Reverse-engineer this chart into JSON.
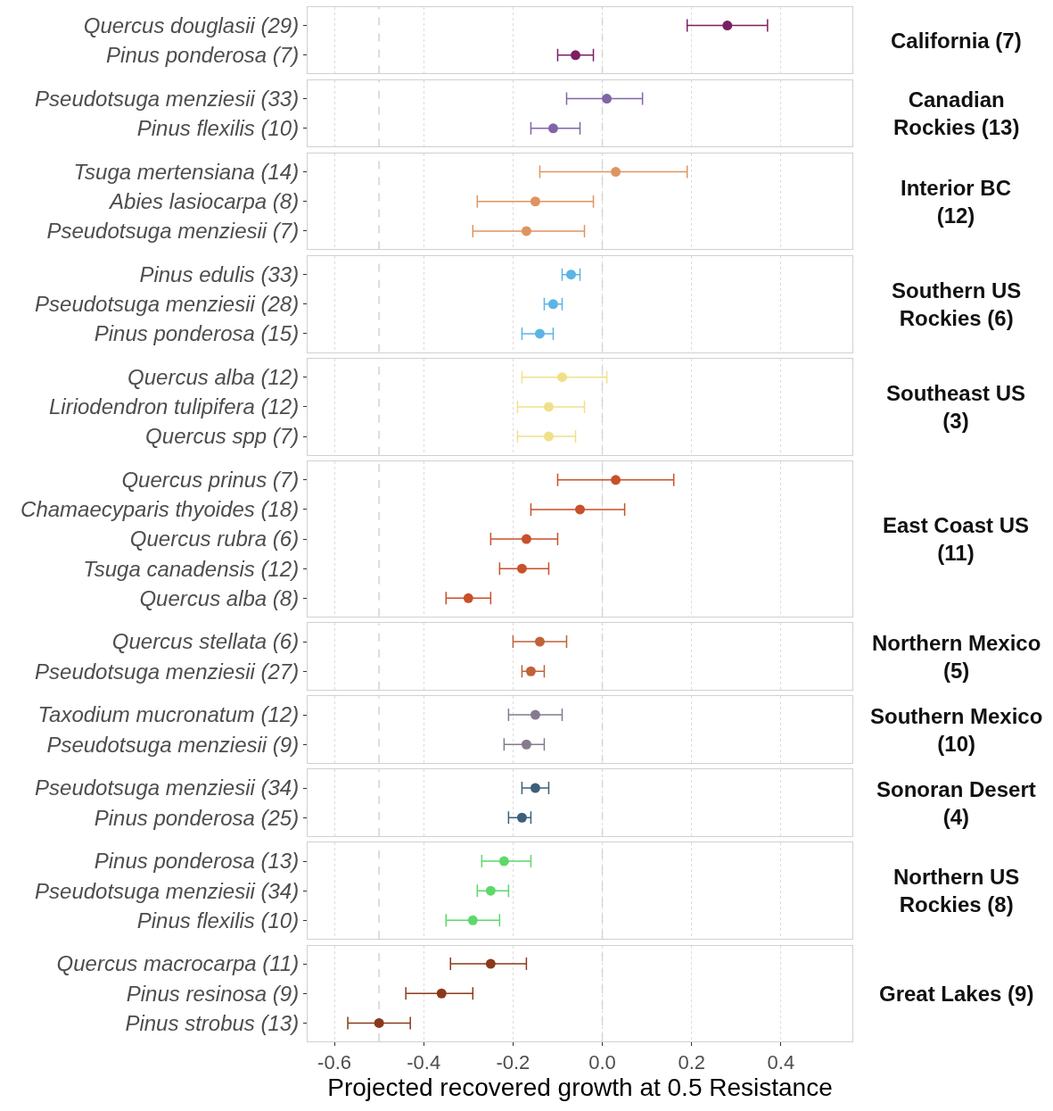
{
  "chart_data": [
    {
      "type": "scatter",
      "orientation": "horizontal",
      "y2label": "California (7)",
      "categories": [
        "Quercus douglasii (29)",
        "Pinus ponderosa (7)"
      ],
      "values": [
        0.28,
        -0.06
      ],
      "errors": [
        [
          0.19,
          0.37
        ],
        [
          -0.1,
          -0.02
        ]
      ],
      "color": "#7b1f63",
      "xlim": [
        -0.66,
        0.56
      ],
      "xticks": [
        -0.6,
        -0.4,
        -0.2,
        0.0,
        0.2,
        0.4
      ],
      "grid": "x",
      "marker": "circle",
      "tick_labels": "y",
      "ref_lines": [
        {
          "axis": "x",
          "value": -0.5,
          "line_style": "dashed",
          "color": "#d3d3d3"
        },
        {
          "axis": "x",
          "value": 0,
          "line_style": "dashed",
          "color": "#d3d3d3"
        }
      ]
    },
    {
      "type": "scatter",
      "orientation": "horizontal",
      "y2label": "Canadian Rockies (13)",
      "categories": [
        "Pseudotsuga menziesii (33)",
        "Pinus flexilis (10)"
      ],
      "values": [
        0.01,
        -0.11
      ],
      "errors": [
        [
          -0.08,
          0.09
        ],
        [
          -0.16,
          -0.05
        ]
      ],
      "color": "#8064a8",
      "xlim": [
        -0.66,
        0.56
      ],
      "xticks": [
        -0.6,
        -0.4,
        -0.2,
        0.0,
        0.2,
        0.4
      ],
      "grid": "x",
      "marker": "circle",
      "tick_labels": "y",
      "ref_lines": [
        {
          "axis": "x",
          "value": -0.5,
          "line_style": "dashed",
          "color": "#d3d3d3"
        },
        {
          "axis": "x",
          "value": 0,
          "line_style": "dashed",
          "color": "#d3d3d3"
        }
      ]
    },
    {
      "type": "scatter",
      "orientation": "horizontal",
      "y2label": "Interior BC (12)",
      "categories": [
        "Tsuga mertensiana (14)",
        "Abies lasiocarpa (8)",
        "Pseudotsuga menziesii (7)"
      ],
      "values": [
        0.03,
        -0.15,
        -0.17
      ],
      "errors": [
        [
          -0.14,
          0.19
        ],
        [
          -0.28,
          -0.02
        ],
        [
          -0.29,
          -0.04
        ]
      ],
      "color": "#de9460",
      "xlim": [
        -0.66,
        0.56
      ],
      "xticks": [
        -0.6,
        -0.4,
        -0.2,
        0.0,
        0.2,
        0.4
      ],
      "grid": "x",
      "marker": "circle",
      "tick_labels": "y",
      "ref_lines": [
        {
          "axis": "x",
          "value": -0.5,
          "line_style": "dashed",
          "color": "#d3d3d3"
        },
        {
          "axis": "x",
          "value": 0,
          "line_style": "dashed",
          "color": "#d3d3d3"
        }
      ]
    },
    {
      "type": "scatter",
      "orientation": "horizontal",
      "y2label": "Southern US Rockies (6)",
      "categories": [
        "Pinus edulis (33)",
        "Pseudotsuga menziesii (28)",
        "Pinus ponderosa (15)"
      ],
      "values": [
        -0.07,
        -0.11,
        -0.14
      ],
      "errors": [
        [
          -0.09,
          -0.05
        ],
        [
          -0.13,
          -0.09
        ],
        [
          -0.18,
          -0.11
        ]
      ],
      "color": "#5ab4e5",
      "xlim": [
        -0.66,
        0.56
      ],
      "xticks": [
        -0.6,
        -0.4,
        -0.2,
        0.0,
        0.2,
        0.4
      ],
      "grid": "x",
      "marker": "circle",
      "tick_labels": "y",
      "ref_lines": [
        {
          "axis": "x",
          "value": -0.5,
          "line_style": "dashed",
          "color": "#d3d3d3"
        },
        {
          "axis": "x",
          "value": 0,
          "line_style": "dashed",
          "color": "#d3d3d3"
        }
      ]
    },
    {
      "type": "scatter",
      "orientation": "horizontal",
      "y2label": "Southeast US (3)",
      "categories": [
        "Quercus alba (12)",
        "Liriodendron tulipifera (12)",
        "Quercus spp (7)"
      ],
      "values": [
        -0.09,
        -0.12,
        -0.12
      ],
      "errors": [
        [
          -0.18,
          0.01
        ],
        [
          -0.19,
          -0.04
        ],
        [
          -0.19,
          -0.06
        ]
      ],
      "color": "#f0e08a",
      "xlim": [
        -0.66,
        0.56
      ],
      "xticks": [
        -0.6,
        -0.4,
        -0.2,
        0.0,
        0.2,
        0.4
      ],
      "grid": "x",
      "marker": "circle",
      "tick_labels": "y",
      "ref_lines": [
        {
          "axis": "x",
          "value": -0.5,
          "line_style": "dashed",
          "color": "#d3d3d3"
        },
        {
          "axis": "x",
          "value": 0,
          "line_style": "dashed",
          "color": "#d3d3d3"
        }
      ]
    },
    {
      "type": "scatter",
      "orientation": "horizontal",
      "y2label": "East Coast US (11)",
      "categories": [
        "Quercus prinus (7)",
        "Chamaecyparis thyoides (18)",
        "Quercus rubra (6)",
        "Tsuga canadensis (12)",
        "Quercus alba (8)"
      ],
      "values": [
        0.03,
        -0.05,
        -0.17,
        -0.18,
        -0.3
      ],
      "errors": [
        [
          -0.1,
          0.16
        ],
        [
          -0.16,
          0.05
        ],
        [
          -0.25,
          -0.1
        ],
        [
          -0.23,
          -0.12
        ],
        [
          -0.35,
          -0.25
        ]
      ],
      "color": "#c8502a",
      "xlim": [
        -0.66,
        0.56
      ],
      "xticks": [
        -0.6,
        -0.4,
        -0.2,
        0.0,
        0.2,
        0.4
      ],
      "grid": "x",
      "marker": "circle",
      "tick_labels": "y",
      "ref_lines": [
        {
          "axis": "x",
          "value": -0.5,
          "line_style": "dashed",
          "color": "#d3d3d3"
        },
        {
          "axis": "x",
          "value": 0,
          "line_style": "dashed",
          "color": "#d3d3d3"
        }
      ]
    },
    {
      "type": "scatter",
      "orientation": "horizontal",
      "y2label": "Northern Mexico (5)",
      "categories": [
        "Quercus stellata (6)",
        "Pseudotsuga menziesii (27)"
      ],
      "values": [
        -0.14,
        -0.16
      ],
      "errors": [
        [
          -0.2,
          -0.08
        ],
        [
          -0.18,
          -0.13
        ]
      ],
      "color": "#c0623a",
      "xlim": [
        -0.66,
        0.56
      ],
      "xticks": [
        -0.6,
        -0.4,
        -0.2,
        0.0,
        0.2,
        0.4
      ],
      "grid": "x",
      "marker": "circle",
      "tick_labels": "y",
      "ref_lines": [
        {
          "axis": "x",
          "value": -0.5,
          "line_style": "dashed",
          "color": "#d3d3d3"
        },
        {
          "axis": "x",
          "value": 0,
          "line_style": "dashed",
          "color": "#d3d3d3"
        }
      ]
    },
    {
      "type": "scatter",
      "orientation": "horizontal",
      "y2label": "Southern Mexico (10)",
      "categories": [
        "Taxodium mucronatum (12)",
        "Pseudotsuga menziesii (9)"
      ],
      "values": [
        -0.15,
        -0.17
      ],
      "errors": [
        [
          -0.21,
          -0.09
        ],
        [
          -0.22,
          -0.13
        ]
      ],
      "color": "#857a8e",
      "xlim": [
        -0.66,
        0.56
      ],
      "xticks": [
        -0.6,
        -0.4,
        -0.2,
        0.0,
        0.2,
        0.4
      ],
      "grid": "x",
      "marker": "circle",
      "tick_labels": "y",
      "ref_lines": [
        {
          "axis": "x",
          "value": -0.5,
          "line_style": "dashed",
          "color": "#d3d3d3"
        },
        {
          "axis": "x",
          "value": 0,
          "line_style": "dashed",
          "color": "#d3d3d3"
        }
      ]
    },
    {
      "type": "scatter",
      "orientation": "horizontal",
      "y2label": "Sonoran Desert (4)",
      "categories": [
        "Pseudotsuga menziesii (34)",
        "Pinus ponderosa (25)"
      ],
      "values": [
        -0.15,
        -0.18
      ],
      "errors": [
        [
          -0.18,
          -0.12
        ],
        [
          -0.21,
          -0.16
        ]
      ],
      "color": "#3d5f7a",
      "xlim": [
        -0.66,
        0.56
      ],
      "xticks": [
        -0.6,
        -0.4,
        -0.2,
        0.0,
        0.2,
        0.4
      ],
      "grid": "x",
      "marker": "circle",
      "tick_labels": "y",
      "ref_lines": [
        {
          "axis": "x",
          "value": -0.5,
          "line_style": "dashed",
          "color": "#d3d3d3"
        },
        {
          "axis": "x",
          "value": 0,
          "line_style": "dashed",
          "color": "#d3d3d3"
        }
      ]
    },
    {
      "type": "scatter",
      "orientation": "horizontal",
      "y2label": "Northern US Rockies (8)",
      "categories": [
        "Pinus ponderosa (13)",
        "Pseudotsuga menziesii (34)",
        "Pinus flexilis (10)"
      ],
      "values": [
        -0.22,
        -0.25,
        -0.29
      ],
      "errors": [
        [
          -0.27,
          -0.16
        ],
        [
          -0.28,
          -0.21
        ],
        [
          -0.35,
          -0.23
        ]
      ],
      "color": "#5ed86a",
      "xlim": [
        -0.66,
        0.56
      ],
      "xticks": [
        -0.6,
        -0.4,
        -0.2,
        0.0,
        0.2,
        0.4
      ],
      "grid": "x",
      "marker": "circle",
      "tick_labels": "y",
      "ref_lines": [
        {
          "axis": "x",
          "value": -0.5,
          "line_style": "dashed",
          "color": "#d3d3d3"
        },
        {
          "axis": "x",
          "value": 0,
          "line_style": "dashed",
          "color": "#d3d3d3"
        }
      ]
    },
    {
      "type": "scatter",
      "orientation": "horizontal",
      "y2label": "Great Lakes (9)",
      "xlabel": "Projected recovered growth at 0.5 Resistance",
      "categories": [
        "Quercus macrocarpa (11)",
        "Pinus resinosa (9)",
        "Pinus strobus (13)"
      ],
      "values": [
        -0.25,
        -0.36,
        -0.5
      ],
      "errors": [
        [
          -0.34,
          -0.17
        ],
        [
          -0.44,
          -0.29
        ],
        [
          -0.57,
          -0.43
        ]
      ],
      "color": "#8a3a1a",
      "xlim": [
        -0.66,
        0.56
      ],
      "xticks": [
        -0.6,
        -0.4,
        -0.2,
        {
          "value": 0,
          "label": "0.0"
        },
        0.2,
        0.4
      ],
      "grid": "x",
      "marker": "circle",
      "ref_lines": [
        {
          "axis": "x",
          "value": -0.5,
          "line_style": "dashed",
          "color": "#d3d3d3"
        },
        {
          "axis": "x",
          "value": 0,
          "line_style": "dashed",
          "color": "#d3d3d3"
        }
      ]
    }
  ]
}
